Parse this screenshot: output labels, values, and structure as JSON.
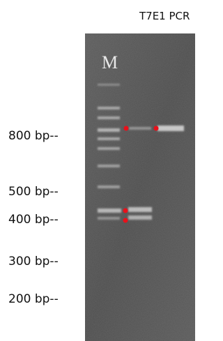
{
  "title": "T7E1 PCR",
  "lane_label": "M",
  "size_labels": [
    "800 bp--",
    "500 bp--",
    "400 bp--",
    "300 bp--",
    "200 bp--"
  ]
}
